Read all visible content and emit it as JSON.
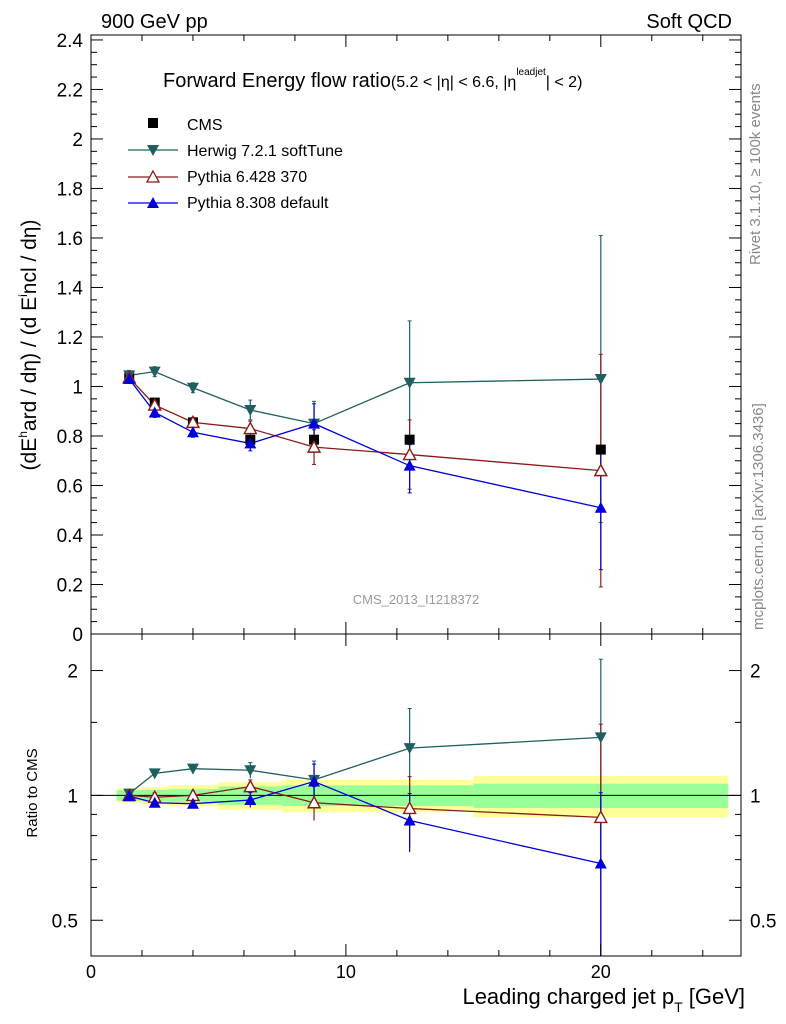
{
  "header": {
    "left": "900 GeV pp",
    "right": "Soft QCD"
  },
  "side_labels": {
    "rivet": "Rivet 3.1.10, ≥ 100k events",
    "mcplots": "mcplots.cern.ch [arXiv:1306.3436]"
  },
  "chart_data": {
    "type": "line",
    "title": "Forward Energy flow ratio",
    "title_cut": "(5.2 < |η| < 6.6, |η",
    "title_cut_sup": "leadjet",
    "title_cut_end": "| < 2)",
    "analysis_tag": "CMS_2013_I1218372",
    "ylabel_parts": [
      "(dE",
      "h",
      "ard / dη) / (d E",
      "i",
      "ncl / dη)"
    ],
    "ratio_ylabel": "Ratio to CMS",
    "xlabel_main": "Leading charged jet p",
    "xlabel_sub": "T",
    "xlabel_unit": " [GeV]",
    "xlim": [
      0,
      25.5
    ],
    "ylim": [
      0,
      2.42
    ],
    "ratio_ylim": [
      0.41,
      2.45
    ],
    "ratio_log": true,
    "x_ticks": [
      "0",
      "10",
      "20"
    ],
    "y_ticks": [
      "0",
      "0.2",
      "0.4",
      "0.6",
      "0.8",
      "1",
      "1.2",
      "1.4",
      "1.6",
      "1.8",
      "2",
      "2.2",
      "2.4"
    ],
    "ratio_y_ticks": [
      "0.5",
      "1",
      "2"
    ],
    "bins": [
      [
        1.0,
        2.0
      ],
      [
        2.0,
        3.0
      ],
      [
        3.0,
        5.0
      ],
      [
        5.0,
        7.5
      ],
      [
        7.5,
        10.0
      ],
      [
        10.0,
        15.0
      ],
      [
        15.0,
        25.0
      ]
    ],
    "data": {
      "name": "CMS",
      "x": [
        1.5,
        2.5,
        4.0,
        6.25,
        8.75,
        12.5,
        20.0
      ],
      "y": [
        1.035,
        0.935,
        0.855,
        0.785,
        0.785,
        0.785,
        0.745
      ],
      "stat_band": [
        0.03,
        0.03,
        0.03,
        0.04,
        0.045,
        0.045,
        0.05
      ],
      "total_band": [
        0.04,
        0.045,
        0.05,
        0.06,
        0.07,
        0.07,
        0.085
      ]
    },
    "series": [
      {
        "name": "Herwig 7.2.1 softTune",
        "color": "#1f5f5f",
        "marker": "triangle-down",
        "x": [
          1.5,
          2.5,
          4.0,
          6.25,
          8.75,
          12.5,
          20.0
        ],
        "y": [
          1.045,
          1.06,
          0.995,
          0.905,
          0.85,
          1.015,
          1.03
        ],
        "err": [
          0.02,
          0.02,
          0.02,
          0.04,
          0.09,
          0.25,
          0.58
        ],
        "ratio": [
          1.01,
          1.13,
          1.16,
          1.15,
          1.09,
          1.3,
          1.38
        ],
        "ratio_err": [
          0.02,
          0.02,
          0.02,
          0.05,
          0.12,
          0.32,
          0.75
        ]
      },
      {
        "name": "Pythia 6.428 370",
        "color": "#8b1a1a",
        "marker": "triangle-up-open",
        "x": [
          1.5,
          2.5,
          4.0,
          6.25,
          8.75,
          12.5,
          20.0
        ],
        "y": [
          1.035,
          0.925,
          0.855,
          0.83,
          0.755,
          0.725,
          0.66
        ],
        "err": [
          0.015,
          0.02,
          0.02,
          0.03,
          0.07,
          0.14,
          0.47
        ],
        "ratio": [
          1.0,
          0.99,
          1.0,
          1.05,
          0.96,
          0.93,
          0.885
        ],
        "ratio_err": [
          0.015,
          0.025,
          0.025,
          0.04,
          0.09,
          0.18,
          0.6
        ]
      },
      {
        "name": "Pythia 8.308 default",
        "color": "#0000dd",
        "marker": "triangle-up",
        "x": [
          1.5,
          2.5,
          4.0,
          6.25,
          8.75,
          12.5,
          20.0
        ],
        "y": [
          1.03,
          0.895,
          0.815,
          0.77,
          0.85,
          0.68,
          0.51
        ],
        "err": [
          0.015,
          0.02,
          0.02,
          0.03,
          0.08,
          0.11,
          0.25
        ],
        "ratio": [
          0.995,
          0.96,
          0.955,
          0.975,
          1.08,
          0.87,
          0.685
        ],
        "ratio_err": [
          0.015,
          0.02,
          0.02,
          0.04,
          0.11,
          0.14,
          0.33
        ]
      }
    ]
  }
}
